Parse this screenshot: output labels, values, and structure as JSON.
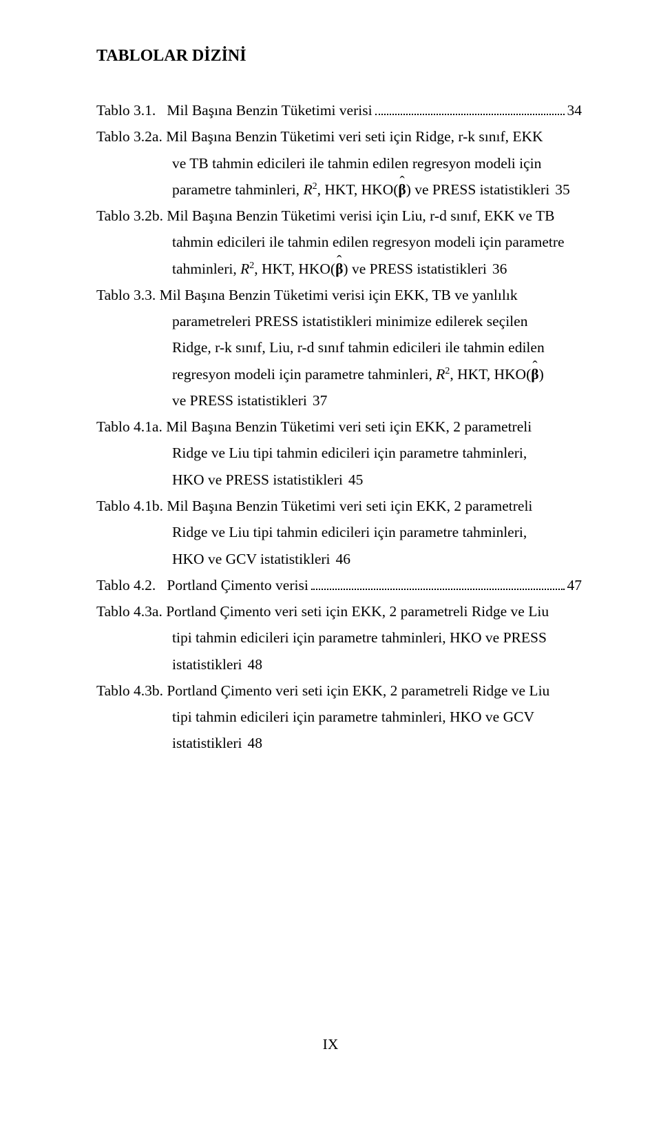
{
  "heading": "TABLOLAR DİZİNİ",
  "entries": [
    {
      "label": "Tablo 3.1.",
      "lines": [
        "Mil Başına Benzin Tüketimi verisi"
      ],
      "page": "34",
      "cont_indent": false
    },
    {
      "label": "Tablo 3.2a.",
      "lines": [
        "Mil Başına Benzin Tüketimi veri seti için Ridge, r-k sınıf, EKK",
        "ve TB tahmin edicileri ile tahmin edilen regresyon modeli için",
        "parametre tahminleri, __R2__, HKT, HKO(__BETA__) ve PRESS istatistikleri"
      ],
      "page": "35",
      "cont_indent": true
    },
    {
      "label": "Tablo 3.2b.",
      "lines": [
        "Mil Başına Benzin Tüketimi verisi için Liu, r-d sınıf, EKK ve TB",
        "tahmin edicileri ile tahmin edilen regresyon modeli için parametre",
        "tahminleri, __R2__, HKT, HKO(__BETA__) ve PRESS istatistikleri"
      ],
      "page": "36",
      "cont_indent": true
    },
    {
      "label": "Tablo 3.3.",
      "lines": [
        "Mil Başına Benzin Tüketimi verisi için EKK, TB ve yanlılık",
        "parametreleri PRESS istatistikleri minimize edilerek seçilen",
        "Ridge, r-k sınıf, Liu, r-d sınıf tahmin edicileri ile tahmin edilen",
        "regresyon modeli için parametre tahminleri, __R2__, HKT, HKO(__BETA__)",
        "ve PRESS istatistikleri"
      ],
      "page": "37",
      "cont_indent": true
    },
    {
      "label": "Tablo 4.1a.",
      "lines": [
        "Mil Başına Benzin Tüketimi veri seti için EKK, 2 parametreli",
        "Ridge ve Liu tipi tahmin edicileri için parametre tahminleri,",
        "HKO ve PRESS  istatistikleri"
      ],
      "page": "45",
      "cont_indent": true
    },
    {
      "label": "Tablo 4.1b.",
      "lines": [
        "Mil Başına Benzin Tüketimi veri seti için EKK, 2 parametreli",
        "Ridge ve Liu tipi tahmin edicileri için parametre tahminleri,",
        "HKO ve GCV istatistikleri"
      ],
      "page": "46",
      "cont_indent": true
    },
    {
      "label": "Tablo 4.2.",
      "lines": [
        "Portland Çimento verisi"
      ],
      "page": "47",
      "cont_indent": false
    },
    {
      "label": "Tablo 4.3a.",
      "lines": [
        "Portland Çimento veri seti için EKK, 2 parametreli Ridge ve Liu",
        "tipi tahmin edicileri için parametre tahminleri, HKO ve PRESS",
        "istatistikleri"
      ],
      "page": "48",
      "cont_indent": true
    },
    {
      "label": "Tablo 4.3b.",
      "lines": [
        "Portland Çimento veri seti için EKK, 2 parametreli Ridge ve Liu",
        "tipi tahmin edicileri için parametre tahminleri, HKO ve GCV",
        "istatistikleri"
      ],
      "page": "48",
      "cont_indent": true
    }
  ],
  "page_number": "IX",
  "math": {
    "r2_html": "<span class=\"italic\">R</span><span class=\"math-sup\">2</span>",
    "beta_html": "<span class=\"hat\"><b>β</b></span>"
  }
}
